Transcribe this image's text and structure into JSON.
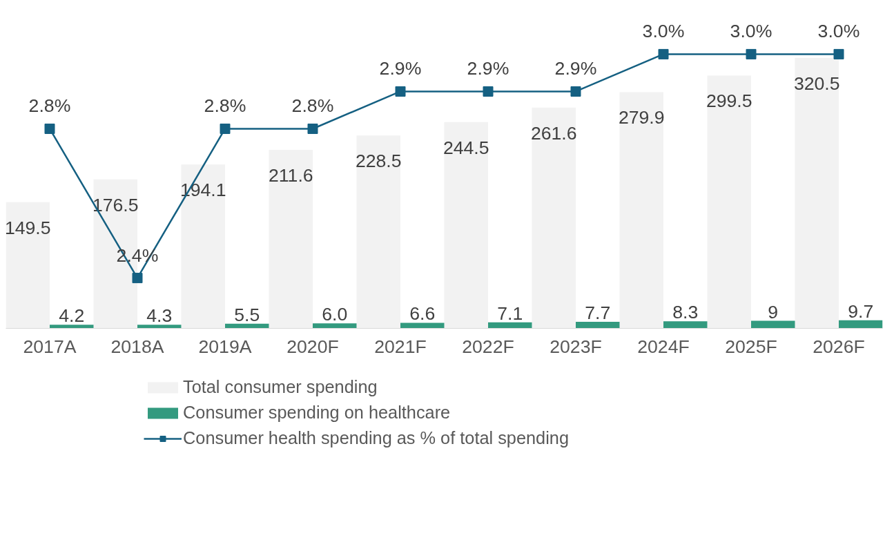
{
  "chart_data": {
    "type": "bar",
    "categories": [
      "2017A",
      "2018A",
      "2019A",
      "2020F",
      "2021F",
      "2022F",
      "2023F",
      "2024F",
      "2025F",
      "2026F"
    ],
    "series": [
      {
        "name": "Total consumer spending",
        "color": "#f2f2f2",
        "values": [
          149.5,
          176.5,
          194.1,
          211.6,
          228.5,
          244.5,
          261.6,
          279.9,
          299.5,
          320.5
        ],
        "value_labels": [
          "149.5",
          "176.5",
          "194.1",
          "211.6",
          "228.5",
          "244.5",
          "261.6",
          "279.9",
          "299.5",
          "320.5"
        ]
      },
      {
        "name": "Consumer spending on healthcare",
        "color": "#339a7f",
        "values": [
          4.2,
          4.3,
          5.5,
          6.0,
          6.6,
          7.1,
          7.7,
          8.3,
          9,
          9.7
        ],
        "value_labels": [
          "4.2",
          "4.3",
          "5.5",
          "6.0",
          "6.6",
          "7.1",
          "7.7",
          "8.3",
          "9",
          "9.7"
        ]
      },
      {
        "name": "Consumer health spending as % of total spending",
        "type": "line",
        "axis": "y2",
        "color": "#156082",
        "marker": "square",
        "line_style": "solid",
        "values": [
          2.8,
          2.4,
          2.8,
          2.8,
          2.9,
          2.9,
          2.9,
          3.0,
          3.0,
          3.0
        ],
        "value_labels": [
          "2.8%",
          "2.4%",
          "2.8%",
          "2.8%",
          "2.9%",
          "2.9%",
          "2.9%",
          "3.0%",
          "3.0%",
          "3.0%"
        ]
      }
    ],
    "tick_labels": "x",
    "grid": false,
    "legend": "bottom"
  }
}
